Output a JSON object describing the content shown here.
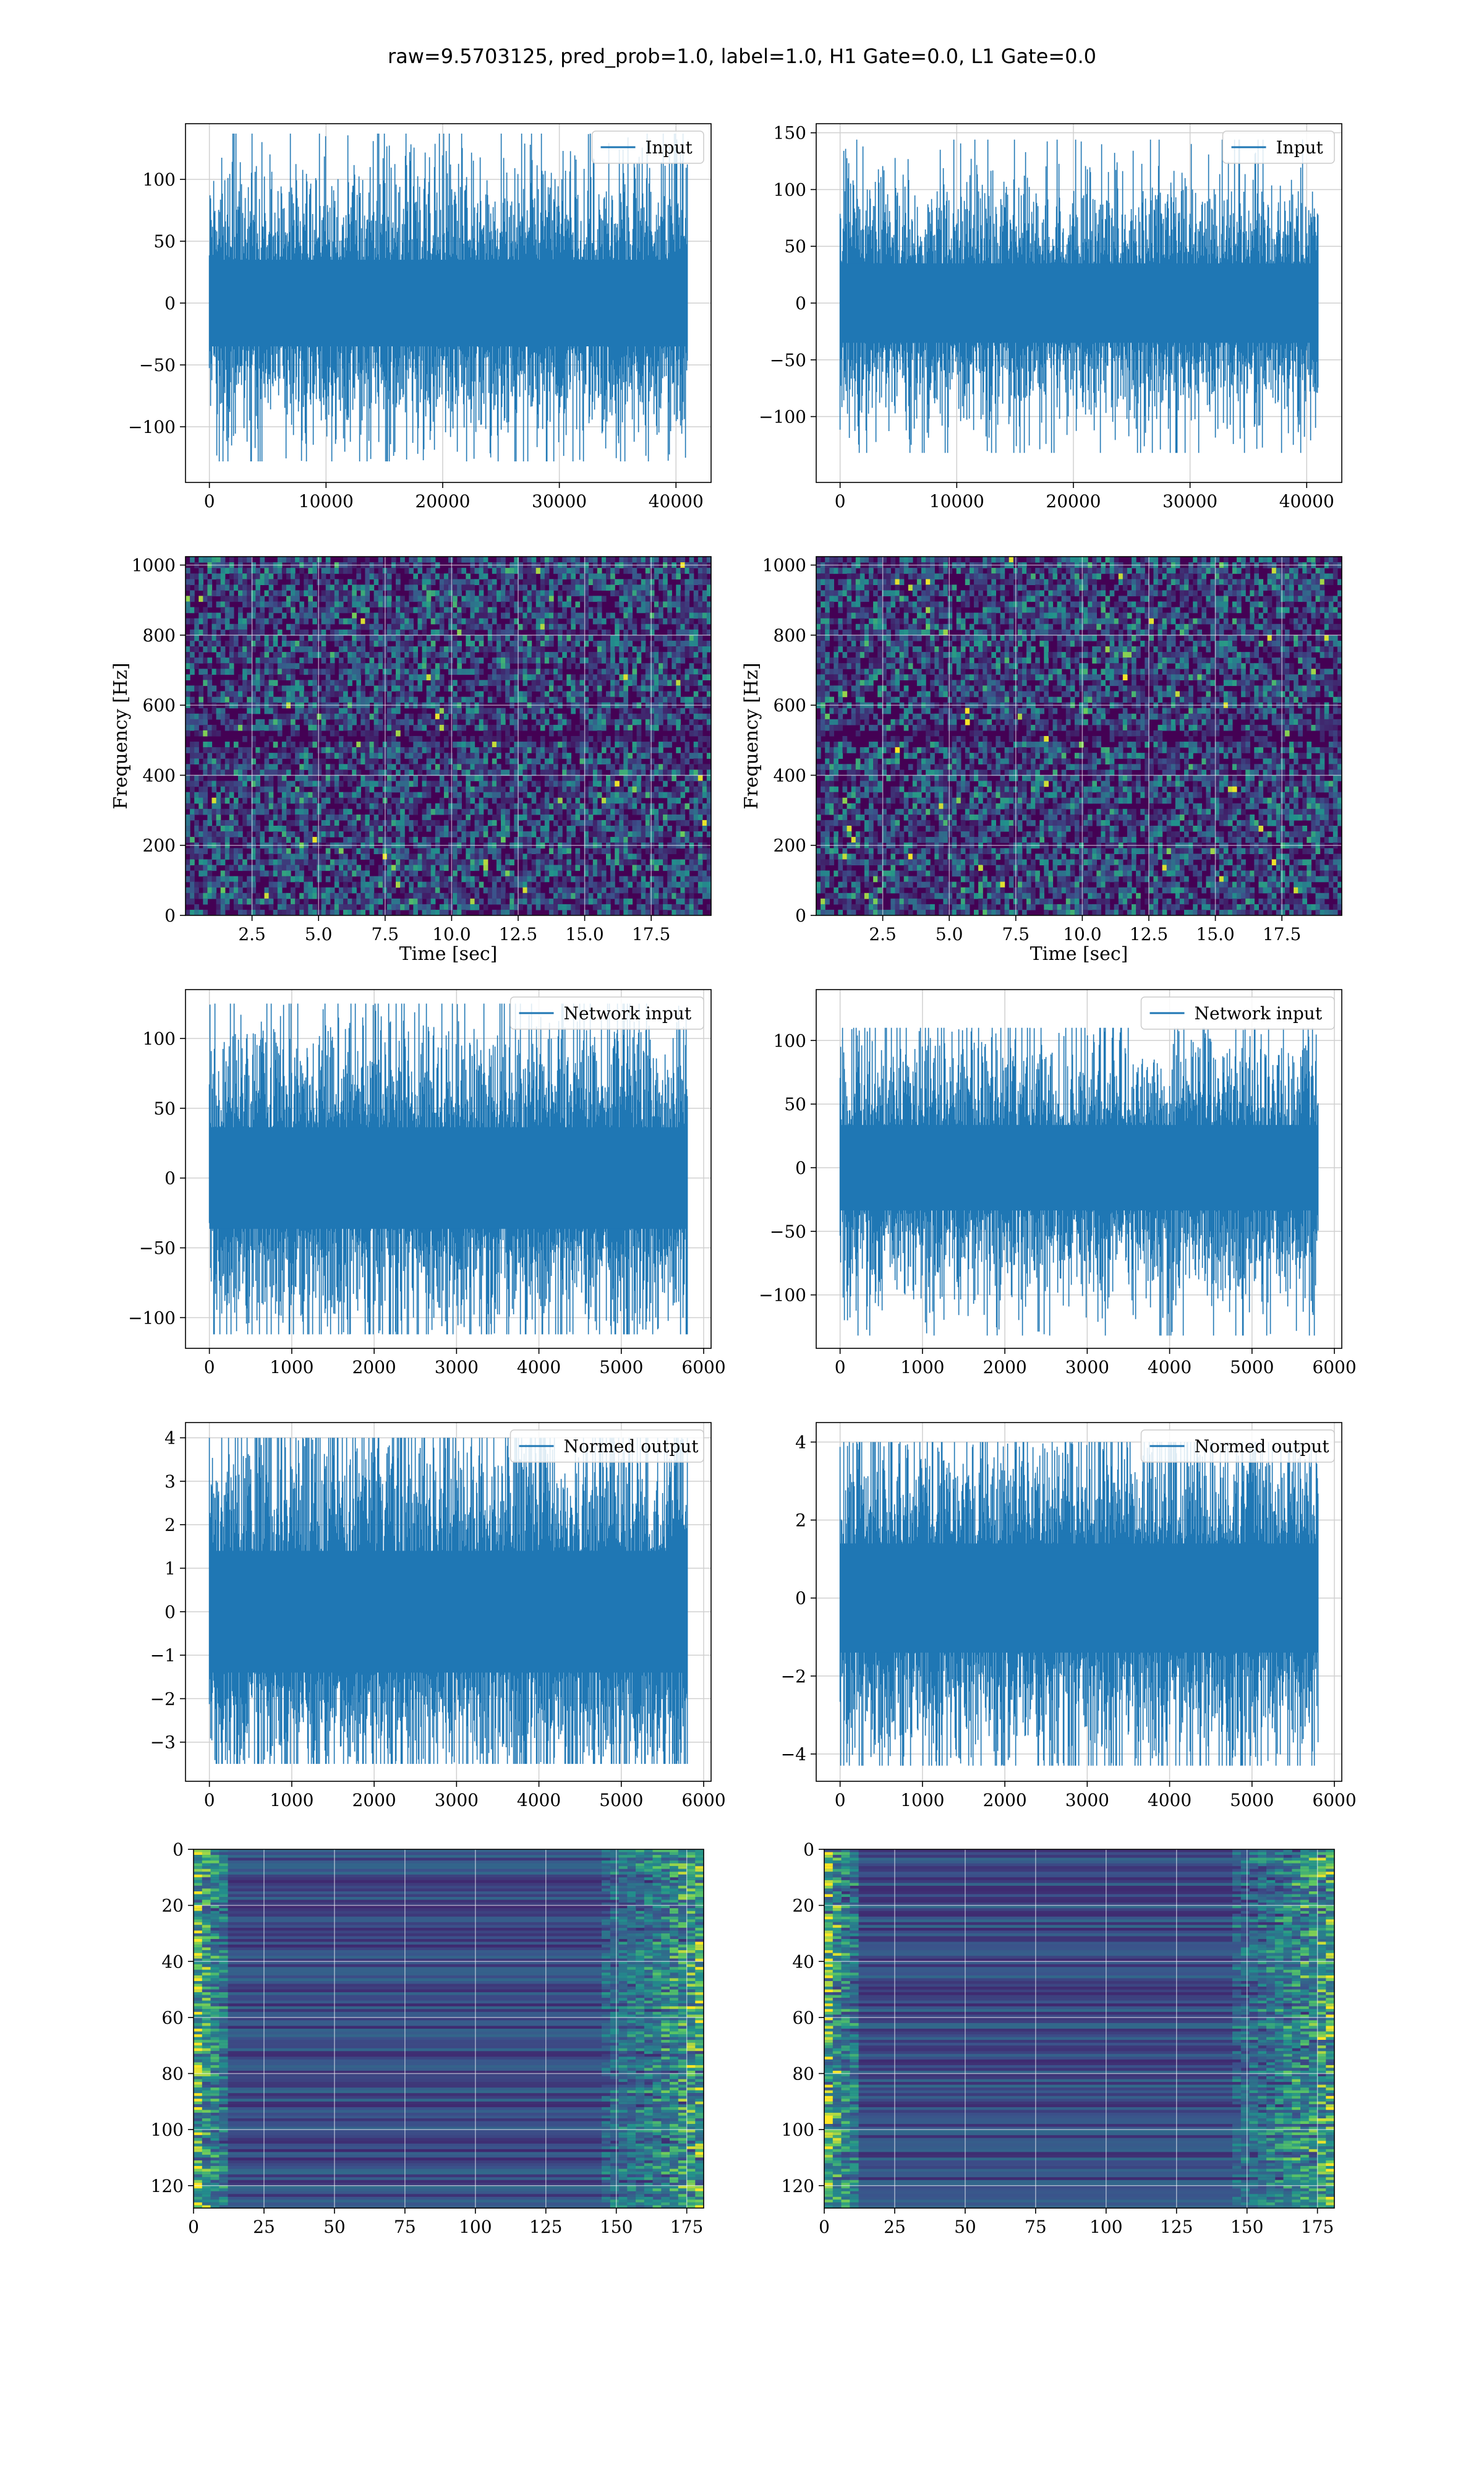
{
  "title": "raw=9.5703125, pred_prob=1.0, label=1.0, H1 Gate=0.0, L1 Gate=0.0",
  "colors": {
    "line": "#1f77b4",
    "grid": "#d0d0d0",
    "axes": "#000000",
    "legend_edge": "#cccccc",
    "viridis": [
      "#440154",
      "#3b528b",
      "#21918c",
      "#5ec962",
      "#fde725"
    ]
  },
  "chart_data": [
    {
      "id": "input-h1",
      "type": "line",
      "row": 0,
      "col": 0,
      "title": "",
      "xlabel": "",
      "ylabel": "",
      "series": [
        {
          "name": "Input",
          "kind": "noise",
          "n": 40960,
          "std": 25,
          "max": 137,
          "min": -128
        }
      ],
      "xlim": [
        -2048,
        43008
      ],
      "ylim": [
        -145,
        145
      ],
      "grid": true,
      "legend": "upper right",
      "xticks": [
        0,
        10000,
        20000,
        30000,
        40000
      ],
      "yticks": [
        -100,
        -50,
        0,
        50,
        100
      ],
      "tick_labels": {
        "x": [
          "0",
          "10000",
          "20000",
          "30000",
          "40000"
        ],
        "y": [
          "−100",
          "−50",
          "0",
          "50",
          "100"
        ]
      }
    },
    {
      "id": "input-l1",
      "type": "line",
      "row": 0,
      "col": 1,
      "title": "",
      "xlabel": "",
      "ylabel": "",
      "series": [
        {
          "name": "Input",
          "kind": "noise",
          "n": 40960,
          "std": 25,
          "max": 144,
          "min": -132
        }
      ],
      "xlim": [
        -2048,
        43008
      ],
      "ylim": [
        -158,
        158
      ],
      "grid": true,
      "legend": "upper right",
      "xticks": [
        0,
        10000,
        20000,
        30000,
        40000
      ],
      "yticks": [
        -100,
        -50,
        0,
        50,
        100,
        150
      ],
      "tick_labels": {
        "x": [
          "0",
          "10000",
          "20000",
          "30000",
          "40000"
        ],
        "y": [
          "−100",
          "−50",
          "0",
          "50",
          "100",
          "150"
        ]
      }
    },
    {
      "id": "spectrogram-h1",
      "type": "heatmap",
      "row": 1,
      "col": 0,
      "title": "",
      "xlabel": "Time [sec]",
      "ylabel": "Frequency [Hz]",
      "xlim": [
        0,
        19.75
      ],
      "ylim": [
        0,
        1024
      ],
      "grid": true,
      "xticks": [
        2.5,
        5.0,
        7.5,
        10.0,
        12.5,
        15.0,
        17.5
      ],
      "yticks": [
        0,
        200,
        400,
        600,
        800,
        1000
      ],
      "tick_labels": {
        "x": [
          "2.5",
          "5.0",
          "7.5",
          "10.0",
          "12.5",
          "15.0",
          "17.5"
        ],
        "y": [
          "0",
          "200",
          "400",
          "600",
          "800",
          "1000"
        ]
      }
    },
    {
      "id": "spectrogram-l1",
      "type": "heatmap",
      "row": 1,
      "col": 1,
      "title": "",
      "xlabel": "Time [sec]",
      "ylabel": "Frequency [Hz]",
      "xlim": [
        0,
        19.75
      ],
      "ylim": [
        0,
        1024
      ],
      "grid": true,
      "xticks": [
        2.5,
        5.0,
        7.5,
        10.0,
        12.5,
        15.0,
        17.5
      ],
      "yticks": [
        0,
        200,
        400,
        600,
        800,
        1000
      ],
      "tick_labels": {
        "x": [
          "2.5",
          "5.0",
          "7.5",
          "10.0",
          "12.5",
          "15.0",
          "17.5"
        ],
        "y": [
          "0",
          "200",
          "400",
          "600",
          "800",
          "1000"
        ]
      }
    },
    {
      "id": "network-input-h1",
      "type": "line",
      "row": 2,
      "col": 0,
      "title": "",
      "xlabel": "",
      "ylabel": "",
      "series": [
        {
          "name": "Network input",
          "kind": "noise",
          "n": 5800,
          "std": 26,
          "max": 125,
          "min": -112
        }
      ],
      "xlim": [
        -290,
        6090
      ],
      "ylim": [
        -122,
        135
      ],
      "grid": true,
      "legend": "upper right",
      "xticks": [
        0,
        1000,
        2000,
        3000,
        4000,
        5000,
        6000
      ],
      "yticks": [
        -100,
        -50,
        0,
        50,
        100
      ],
      "tick_labels": {
        "x": [
          "0",
          "1000",
          "2000",
          "3000",
          "4000",
          "5000",
          "6000"
        ],
        "y": [
          "−100",
          "−50",
          "0",
          "50",
          "100"
        ]
      }
    },
    {
      "id": "network-input-l1",
      "type": "line",
      "row": 2,
      "col": 1,
      "title": "",
      "xlabel": "",
      "ylabel": "",
      "series": [
        {
          "name": "Network input",
          "kind": "noise",
          "n": 5800,
          "std": 24,
          "max": 110,
          "min": -132
        }
      ],
      "xlim": [
        -290,
        6090
      ],
      "ylim": [
        -142,
        140
      ],
      "grid": true,
      "legend": "upper right",
      "xticks": [
        0,
        1000,
        2000,
        3000,
        4000,
        5000,
        6000
      ],
      "yticks": [
        -100,
        -50,
        0,
        50,
        100
      ],
      "tick_labels": {
        "x": [
          "0",
          "1000",
          "2000",
          "3000",
          "4000",
          "5000",
          "6000"
        ],
        "y": [
          "−100",
          "−50",
          "0",
          "50",
          "100"
        ]
      }
    },
    {
      "id": "normed-output-h1",
      "type": "line",
      "row": 3,
      "col": 0,
      "title": "",
      "xlabel": "",
      "ylabel": "",
      "series": [
        {
          "name": "Normed output",
          "kind": "noise",
          "n": 5800,
          "std": 1.0,
          "max": 4.0,
          "min": -3.5
        }
      ],
      "xlim": [
        -290,
        6090
      ],
      "ylim": [
        -3.9,
        4.35
      ],
      "grid": true,
      "legend": "upper right",
      "xticks": [
        0,
        1000,
        2000,
        3000,
        4000,
        5000,
        6000
      ],
      "yticks": [
        -3,
        -2,
        -1,
        0,
        1,
        2,
        3,
        4
      ],
      "tick_labels": {
        "x": [
          "0",
          "1000",
          "2000",
          "3000",
          "4000",
          "5000",
          "6000"
        ],
        "y": [
          "−3",
          "−2",
          "−1",
          "0",
          "1",
          "2",
          "3",
          "4"
        ]
      }
    },
    {
      "id": "normed-output-l1",
      "type": "line",
      "row": 3,
      "col": 1,
      "title": "",
      "xlabel": "",
      "ylabel": "",
      "series": [
        {
          "name": "Normed output",
          "kind": "noise",
          "n": 5800,
          "std": 1.0,
          "max": 4.0,
          "min": -4.3
        }
      ],
      "xlim": [
        -290,
        6090
      ],
      "ylim": [
        -4.7,
        4.5
      ],
      "grid": true,
      "legend": "upper right",
      "xticks": [
        0,
        1000,
        2000,
        3000,
        4000,
        5000,
        6000
      ],
      "yticks": [
        -4,
        -2,
        0,
        2,
        4
      ],
      "tick_labels": {
        "x": [
          "0",
          "1000",
          "2000",
          "3000",
          "4000",
          "5000",
          "6000"
        ],
        "y": [
          "−4",
          "−2",
          "0",
          "2",
          "4"
        ]
      }
    },
    {
      "id": "feature-map-h1",
      "type": "heatmap",
      "row": 4,
      "col": 0,
      "title": "",
      "xlabel": "",
      "ylabel": "",
      "xlim": [
        0,
        181
      ],
      "ylim": [
        128,
        0
      ],
      "grid": true,
      "xticks": [
        0,
        25,
        50,
        75,
        100,
        125,
        150,
        175
      ],
      "yticks": [
        0,
        20,
        40,
        60,
        80,
        100,
        120
      ],
      "tick_labels": {
        "x": [
          "0",
          "25",
          "50",
          "75",
          "100",
          "125",
          "150",
          "175"
        ],
        "y": [
          "0",
          "20",
          "40",
          "60",
          "80",
          "100",
          "120"
        ]
      }
    },
    {
      "id": "feature-map-l1",
      "type": "heatmap",
      "row": 4,
      "col": 1,
      "title": "",
      "xlabel": "",
      "ylabel": "",
      "xlim": [
        0,
        181
      ],
      "ylim": [
        128,
        0
      ],
      "grid": true,
      "xticks": [
        0,
        25,
        50,
        75,
        100,
        125,
        150,
        175
      ],
      "yticks": [
        0,
        20,
        40,
        60,
        80,
        100,
        120
      ],
      "tick_labels": {
        "x": [
          "0",
          "25",
          "50",
          "75",
          "100",
          "125",
          "150",
          "175"
        ],
        "y": [
          "0",
          "20",
          "40",
          "60",
          "80",
          "100",
          "120"
        ]
      }
    }
  ]
}
